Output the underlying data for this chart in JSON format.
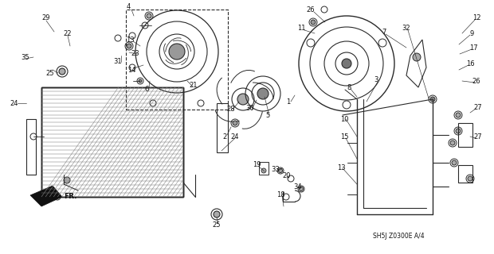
{
  "bg_color": "#ffffff",
  "diagram_code": "SH5J Z0300E A/4",
  "fig_width": 6.2,
  "fig_height": 3.2,
  "dpi": 100,
  "line_color": "#2a2a2a",
  "label_fontsize": 6.0,
  "label_color": "#111111",
  "gray_fill": "#c8c8c8",
  "dark_fill": "#555555",
  "med_fill": "#888888"
}
